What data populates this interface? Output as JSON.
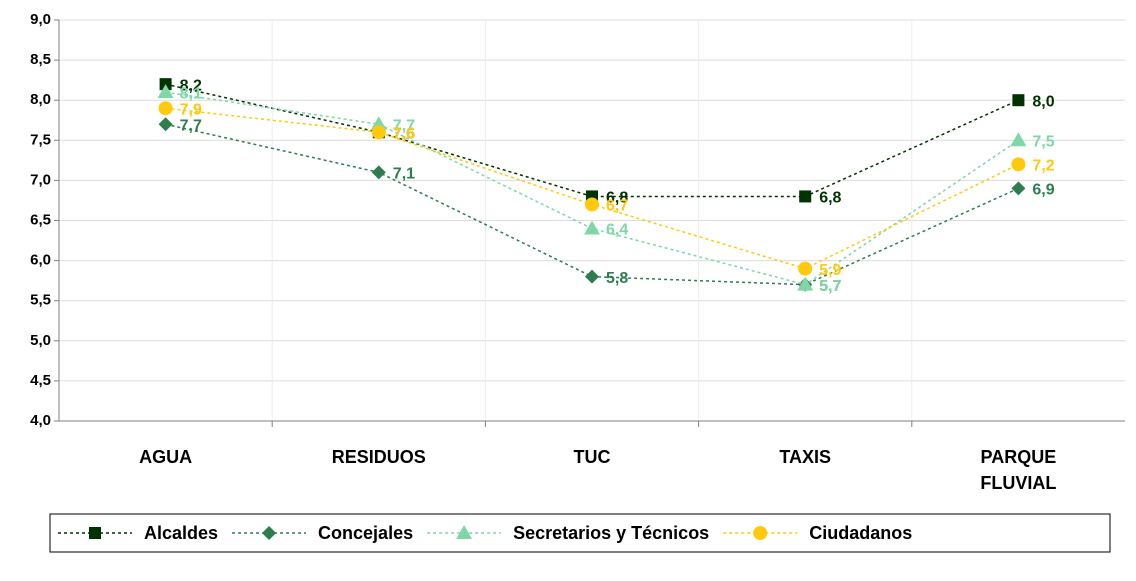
{
  "chart_data": {
    "type": "line",
    "categories": [
      "AGUA",
      "RESIDUOS",
      "TUC",
      "TAXIS",
      "PARQUE FLUVIAL"
    ],
    "series": [
      {
        "name": "Alcaldes",
        "color": "#003300",
        "marker": "square",
        "values": [
          8.2,
          7.6,
          6.8,
          6.8,
          8.0
        ],
        "value_labels": [
          "8,2",
          "7,6",
          "6,8",
          "6,8",
          "8,0"
        ]
      },
      {
        "name": "Concejales",
        "color": "#2e7d4f",
        "marker": "diamond",
        "values": [
          7.7,
          7.1,
          5.8,
          5.7,
          6.9
        ],
        "value_labels": [
          "7,7",
          "7,1",
          "5,8",
          "5,7",
          "6,9"
        ]
      },
      {
        "name": "Secretarios y Técnicos",
        "color": "#7fd6a6",
        "marker": "triangle",
        "values": [
          8.1,
          7.7,
          6.4,
          5.7,
          7.5
        ],
        "value_labels": [
          "8,1",
          "7,7",
          "6,4",
          "5,7",
          "7,5"
        ]
      },
      {
        "name": "Ciudadanos",
        "color": "#ffc90e",
        "marker": "circle",
        "values": [
          7.9,
          7.6,
          6.7,
          5.9,
          7.2
        ],
        "value_labels": [
          "7,9",
          "7,6",
          "6,7",
          "5,9",
          "7,2"
        ]
      }
    ],
    "ylim": [
      4,
      9
    ],
    "yticks": [
      {
        "value": 4,
        "label": "4,0"
      },
      {
        "value": 4.5,
        "label": "4,5"
      },
      {
        "value": 5,
        "label": "5,0"
      },
      {
        "value": 5.5,
        "label": "5,5"
      },
      {
        "value": 6,
        "label": "6,0"
      },
      {
        "value": 6.5,
        "label": "6,5"
      },
      {
        "value": 7,
        "label": "7,0"
      },
      {
        "value": 7.5,
        "label": "7,5"
      },
      {
        "value": 8,
        "label": "8,0"
      },
      {
        "value": 8.5,
        "label": "8,5"
      },
      {
        "value": 9,
        "label": "9,0"
      }
    ],
    "grid": true,
    "legend": "bottom"
  }
}
